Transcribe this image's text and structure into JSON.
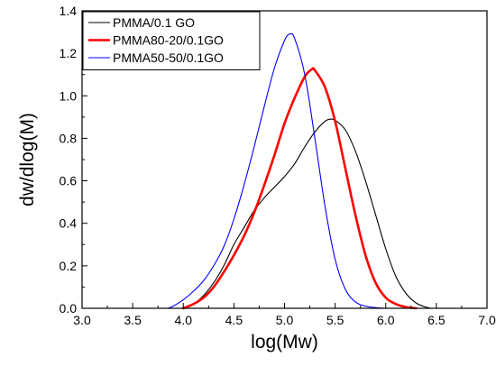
{
  "chart_data": {
    "type": "line",
    "xlabel": "log(Mw)",
    "ylabel": "dw/dlog(M)",
    "xlim": [
      3.0,
      7.0
    ],
    "ylim": [
      0.0,
      1.4
    ],
    "x_ticks": [
      "3.0",
      "3.5",
      "4.0",
      "4.5",
      "5.0",
      "5.5",
      "6.0",
      "6.5",
      "7.0"
    ],
    "y_ticks": [
      "0.0",
      "0.2",
      "0.4",
      "0.6",
      "0.8",
      "1.0",
      "1.2",
      "1.4"
    ],
    "legend_position": "top-left",
    "grid": false,
    "series": [
      {
        "name": "PMMA/0.1 GO",
        "color": "#000000",
        "width": "thin",
        "x": [
          4.0,
          4.1,
          4.2,
          4.3,
          4.4,
          4.5,
          4.6,
          4.7,
          4.8,
          4.9,
          5.0,
          5.1,
          5.2,
          5.3,
          5.4,
          5.45,
          5.5,
          5.6,
          5.7,
          5.8,
          5.9,
          6.0,
          6.1,
          6.2,
          6.3,
          6.4,
          6.45
        ],
        "y": [
          0.0,
          0.02,
          0.06,
          0.12,
          0.2,
          0.3,
          0.38,
          0.46,
          0.52,
          0.57,
          0.62,
          0.68,
          0.76,
          0.83,
          0.88,
          0.89,
          0.885,
          0.84,
          0.74,
          0.6,
          0.44,
          0.28,
          0.15,
          0.07,
          0.025,
          0.005,
          0.0
        ]
      },
      {
        "name": "PMMA80-20/0.1GO",
        "color": "#ff0000",
        "width": "thick",
        "x": [
          4.0,
          4.1,
          4.2,
          4.3,
          4.4,
          4.5,
          4.6,
          4.7,
          4.8,
          4.9,
          5.0,
          5.1,
          5.2,
          5.27,
          5.3,
          5.4,
          5.5,
          5.6,
          5.7,
          5.8,
          5.9,
          6.0,
          6.1,
          6.2,
          6.3
        ],
        "y": [
          0.0,
          0.02,
          0.05,
          0.1,
          0.17,
          0.25,
          0.34,
          0.45,
          0.58,
          0.72,
          0.87,
          0.99,
          1.09,
          1.125,
          1.12,
          1.04,
          0.88,
          0.66,
          0.44,
          0.25,
          0.12,
          0.05,
          0.02,
          0.006,
          0.0
        ]
      },
      {
        "name": "PMMA50-50/0.1GO",
        "color": "#0000ff",
        "width": "thin",
        "x": [
          3.85,
          3.9,
          4.0,
          4.1,
          4.2,
          4.3,
          4.4,
          4.5,
          4.6,
          4.7,
          4.8,
          4.9,
          5.0,
          5.05,
          5.1,
          5.2,
          5.3,
          5.4,
          5.5,
          5.6,
          5.7,
          5.8,
          5.9,
          6.0
        ],
        "y": [
          0.0,
          0.01,
          0.04,
          0.08,
          0.13,
          0.2,
          0.29,
          0.42,
          0.58,
          0.76,
          0.95,
          1.13,
          1.26,
          1.29,
          1.27,
          1.1,
          0.8,
          0.48,
          0.23,
          0.09,
          0.03,
          0.01,
          0.003,
          0.0
        ]
      }
    ]
  }
}
